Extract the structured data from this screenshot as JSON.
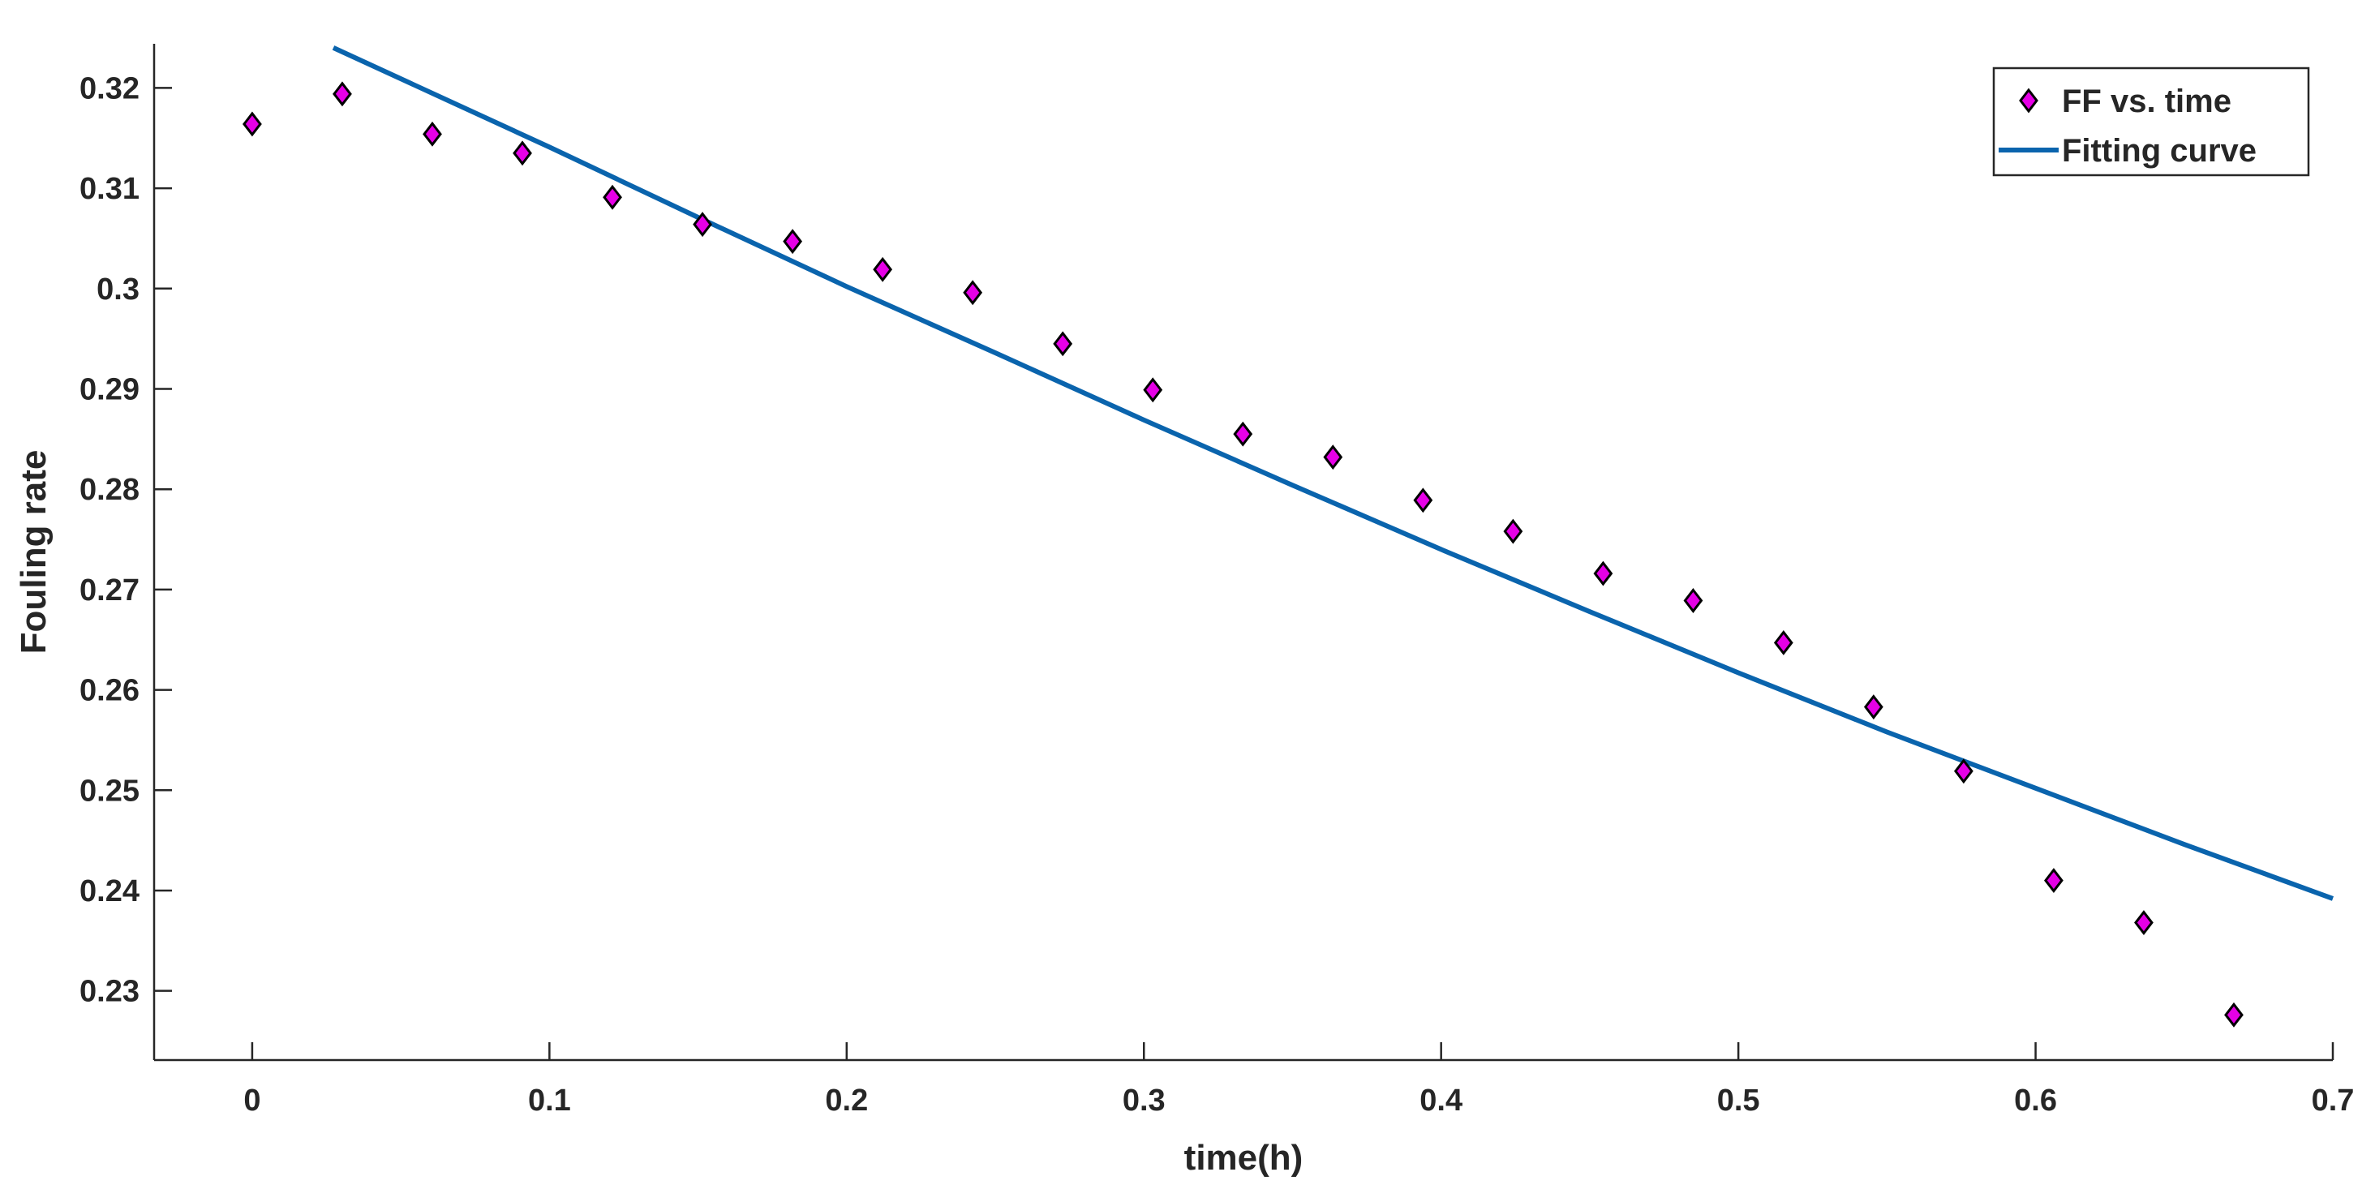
{
  "chart_data": {
    "type": "scatter",
    "title": "",
    "xlabel": "time(h)",
    "ylabel": "Fouling rate",
    "xlim": [
      -0.033,
      0.7
    ],
    "ylim": [
      0.2231,
      0.3244
    ],
    "grid": false,
    "legend_position": "top-right",
    "x_ticks": [
      0,
      0.1,
      0.2,
      0.3,
      0.4,
      0.5,
      0.6,
      0.7
    ],
    "x_tick_labels": [
      "0",
      "0.1",
      "0.2",
      "0.3",
      "0.4",
      "0.5",
      "0.6",
      "0.7"
    ],
    "y_ticks": [
      0.23,
      0.24,
      0.25,
      0.26,
      0.27,
      0.28,
      0.29,
      0.3,
      0.31,
      0.32
    ],
    "y_tick_labels": [
      "0.23",
      "0.24",
      "0.25",
      "0.26",
      "0.27",
      "0.28",
      "0.29",
      "0.3",
      "0.31",
      "0.32"
    ],
    "series": [
      {
        "name": "FF vs. time",
        "kind": "scatter",
        "marker": "diamond",
        "color": "#e600e6",
        "edge_color": "#000000",
        "x": [
          0,
          0.0303,
          0.0606,
          0.0909,
          0.1212,
          0.1515,
          0.1818,
          0.2121,
          0.2424,
          0.2727,
          0.303,
          0.3333,
          0.3636,
          0.3939,
          0.4242,
          0.4545,
          0.4848,
          0.5152,
          0.5455,
          0.5758,
          0.6061,
          0.6364,
          0.6667
        ],
        "y": [
          0.3164,
          0.3194,
          0.3154,
          0.3135,
          0.3091,
          0.3064,
          0.3047,
          0.3019,
          0.2996,
          0.2945,
          0.2899,
          0.2855,
          0.2832,
          0.2789,
          0.2758,
          0.2716,
          0.2689,
          0.2647,
          0.2583,
          0.2519,
          0.241,
          0.2368,
          0.2276
        ]
      },
      {
        "name": "Fitting curve",
        "kind": "line",
        "color": "#0a64ad",
        "x": [
          0.0273,
          0.1,
          0.15,
          0.2,
          0.25,
          0.3,
          0.35,
          0.4,
          0.45,
          0.5,
          0.55,
          0.6,
          0.65,
          0.7
        ],
        "y": [
          0.324,
          0.3141,
          0.3071,
          0.3002,
          0.2936,
          0.2869,
          0.2804,
          0.274,
          0.2678,
          0.2617,
          0.2558,
          0.2502,
          0.2446,
          0.2392
        ]
      }
    ]
  }
}
